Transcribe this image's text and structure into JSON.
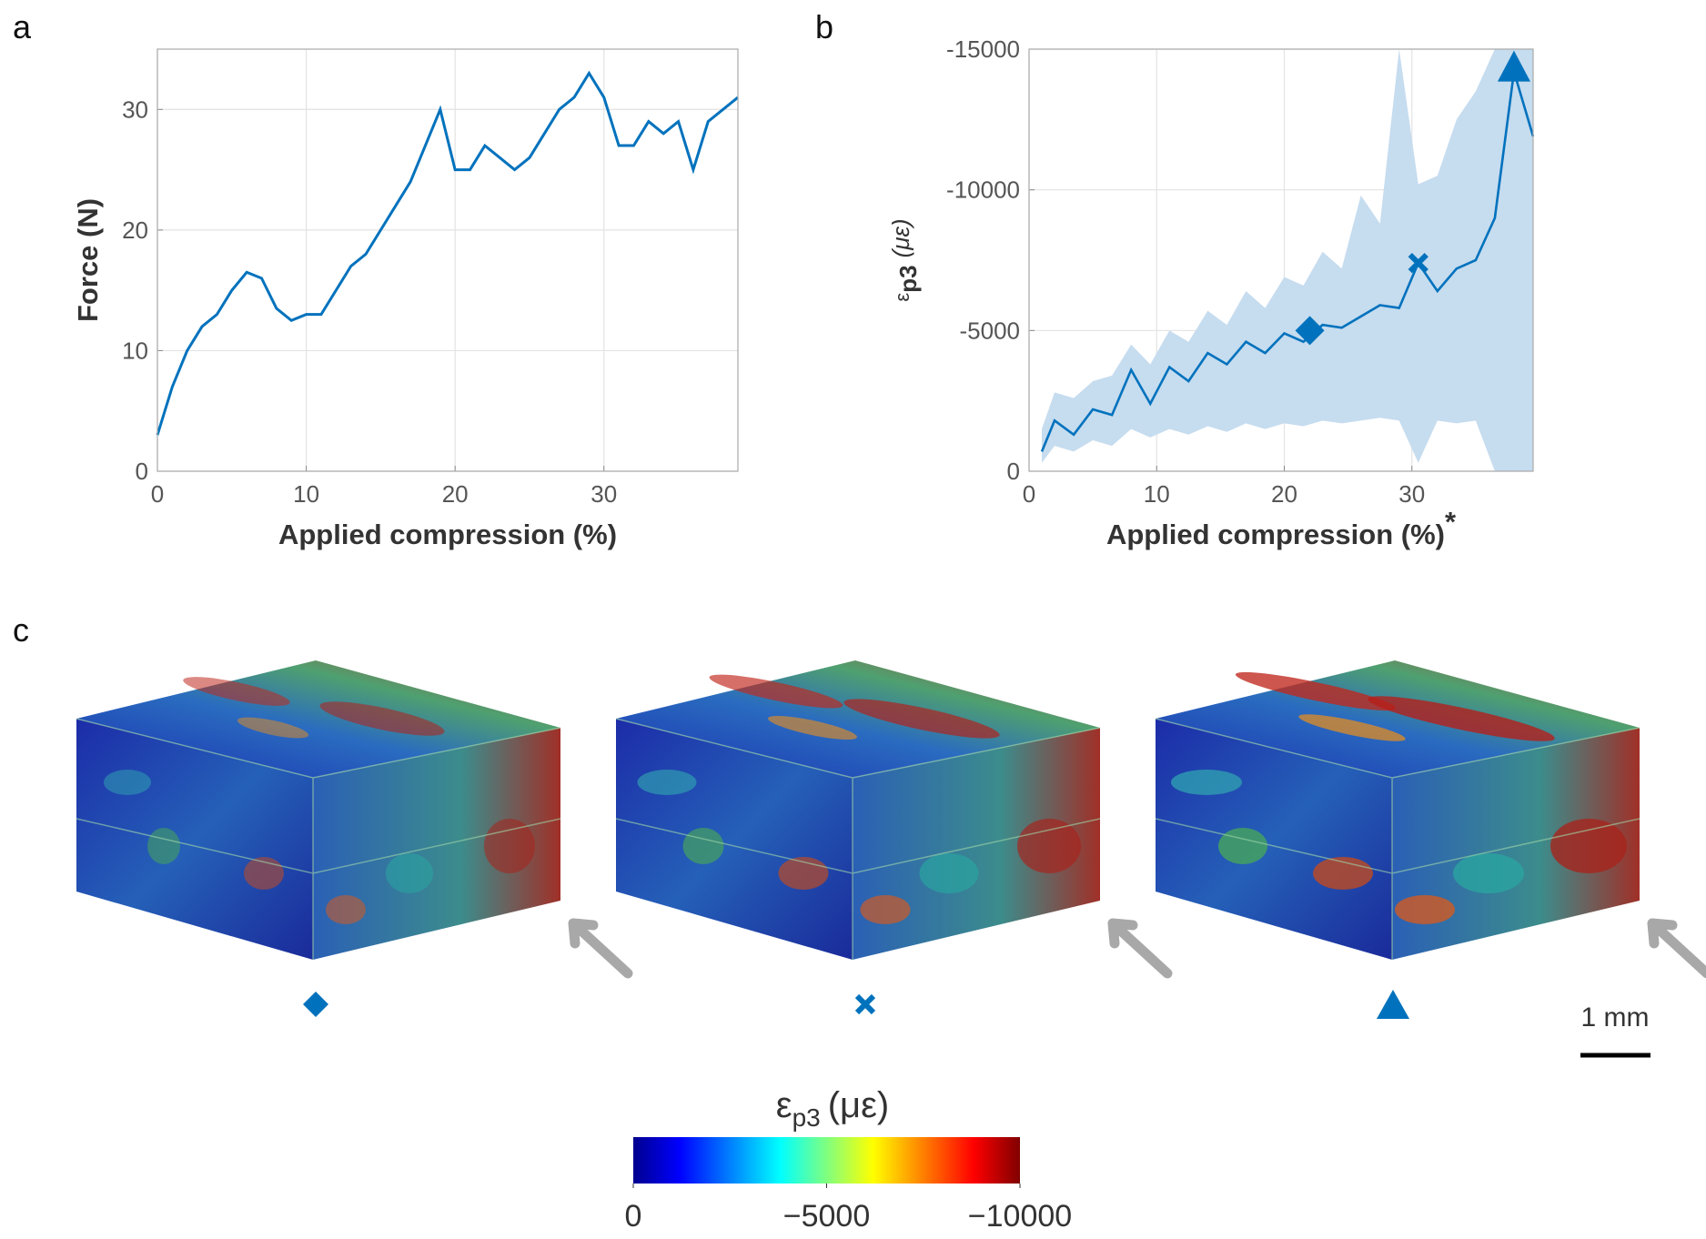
{
  "panel_labels": [
    "a",
    "b",
    "c"
  ],
  "chart_data": [
    {
      "type": "line",
      "color": "#0072bd",
      "grid": true,
      "ylabel": "Force (N)",
      "xlabel": "Applied compression (%)",
      "x": [
        0,
        1,
        2,
        3,
        4,
        5,
        6,
        7,
        8,
        9,
        10,
        11,
        12,
        13,
        14,
        15,
        16,
        17,
        18,
        19,
        20,
        21,
        22,
        23,
        24,
        25,
        26,
        27,
        28,
        29,
        30,
        31,
        32,
        33,
        34,
        35,
        36,
        37,
        38,
        39
      ],
      "values": [
        3,
        7,
        10,
        12,
        13,
        15,
        16.5,
        16,
        13.5,
        12.5,
        13,
        13,
        15,
        17,
        18,
        20,
        22,
        24,
        27,
        30,
        25,
        25,
        27,
        26,
        25,
        26,
        28,
        30,
        31,
        33,
        31,
        27,
        27,
        29,
        28,
        29,
        25,
        29,
        30,
        31
      ],
      "xlim": [
        0,
        39
      ],
      "ylim": [
        0,
        35
      ],
      "xticks": [
        0,
        10,
        20,
        30
      ],
      "yticks": [
        0,
        10,
        20,
        30
      ]
    },
    {
      "type": "band-line",
      "color": "#0072bd",
      "band_color": "#c6dcef",
      "grid": true,
      "ylabel_symbol": "ε",
      "ylabel_subscript": "p3",
      "ylabel_unit": "(με)",
      "xlabel": "Applied compression (%)",
      "xlabel_note": "*",
      "x": [
        1,
        2,
        3.5,
        5,
        6.5,
        8,
        9.5,
        11,
        12.5,
        14,
        15.5,
        17,
        18.5,
        20,
        21.5,
        23,
        24.5,
        26,
        27.5,
        29,
        30.5,
        32,
        33.5,
        35,
        36.5,
        38,
        39.5
      ],
      "values": [
        -700,
        -1800,
        -1300,
        -2200,
        -2000,
        -3600,
        -2400,
        -3700,
        -3200,
        -4200,
        -3800,
        -4600,
        -4200,
        -4900,
        -4600,
        -5200,
        -5100,
        -5500,
        -5900,
        -5800,
        -7400,
        -6400,
        -7200,
        -7500,
        -9000,
        -14200,
        -11900
      ],
      "band_high": [
        -1500,
        -2800,
        -2600,
        -3200,
        -3400,
        -4500,
        -3800,
        -5000,
        -4600,
        -5700,
        -5200,
        -6400,
        -5800,
        -6900,
        -6600,
        -7800,
        -7200,
        -9800,
        -8800,
        -15000,
        -10200,
        -10500,
        -12500,
        -13500,
        -15000,
        -15000,
        -15000
      ],
      "band_low": [
        -300,
        -900,
        -700,
        -1100,
        -900,
        -1500,
        -1200,
        -1500,
        -1300,
        -1600,
        -1400,
        -1700,
        -1500,
        -1700,
        -1600,
        -1800,
        -1700,
        -1800,
        -1900,
        -1800,
        -300,
        -1800,
        -1700,
        -1800,
        0,
        0,
        0
      ],
      "markers": [
        {
          "shape": "diamond",
          "x": 22,
          "y": -5000
        },
        {
          "shape": "cross",
          "x": 30.5,
          "y": -7400
        },
        {
          "shape": "triangle",
          "x": 38,
          "y": -14300
        }
      ],
      "xlim": [
        0,
        39.5
      ],
      "ylim": [
        0,
        -15000
      ],
      "xticks": [
        0,
        10,
        20,
        30
      ],
      "yticks": [
        0,
        -5000,
        -10000,
        -15000
      ]
    }
  ],
  "scale_bar": "1 mm",
  "colorbar": {
    "label_symbol": "ε",
    "label_subscript": "p3",
    "label_unit": "(με)",
    "lim": [
      0,
      -10000
    ],
    "ticks": [
      0,
      {
        "value": -5000,
        "label": "−5000"
      },
      {
        "value": -10000,
        "label": "−10000"
      }
    ]
  }
}
